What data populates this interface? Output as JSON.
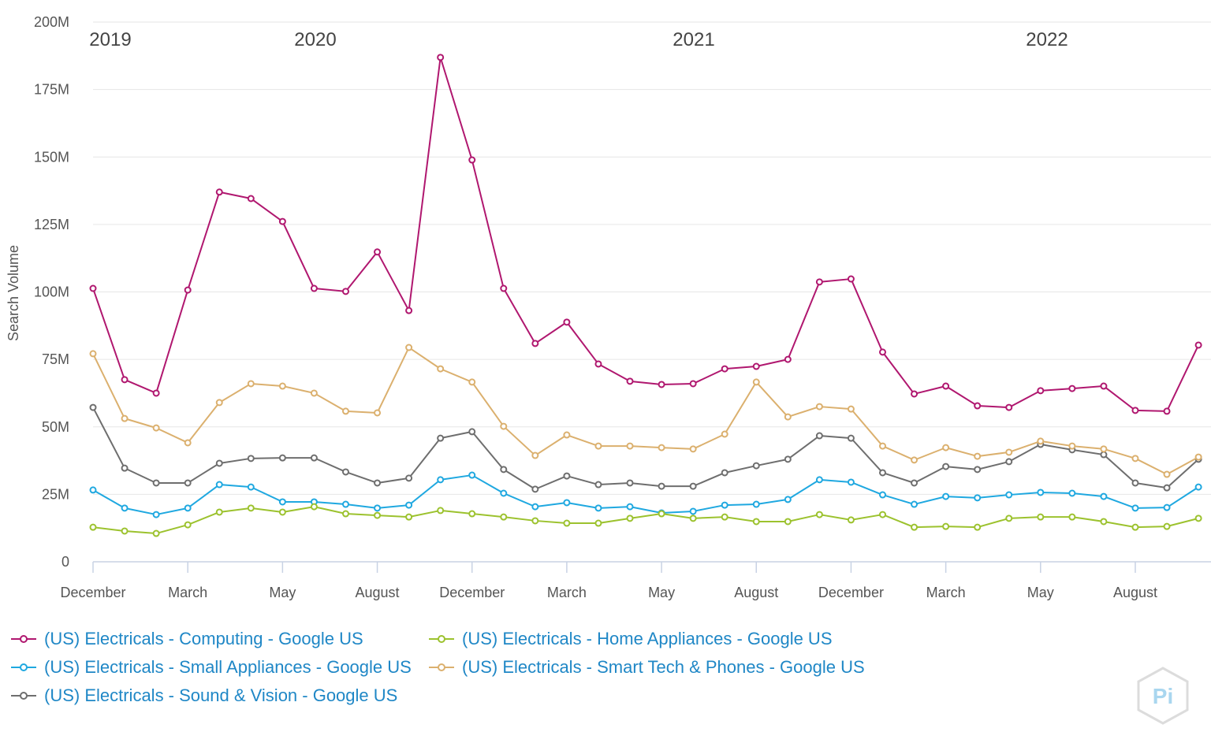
{
  "chart_data": {
    "type": "line",
    "title": "",
    "xlabel": "",
    "ylabel": "Search Volume",
    "ylim": [
      0,
      200000000
    ],
    "y_ticks": [
      "0",
      "25M",
      "50M",
      "75M",
      "100M",
      "125M",
      "150M",
      "175M",
      "200M"
    ],
    "x_tick_labels": [
      "December",
      "March",
      "May",
      "August",
      "December",
      "March",
      "May",
      "August",
      "December",
      "March",
      "May",
      "August"
    ],
    "year_labels": [
      "2019",
      "2020",
      "2021",
      "2022"
    ],
    "grid": true,
    "legend_position": "bottom",
    "unit": "M",
    "series": [
      {
        "name": "(US) Electricals - Computing - Google US",
        "color": "#b0176f",
        "values": [
          101.3,
          67.5,
          62.5,
          100.7,
          137,
          134.6,
          126.1,
          101.3,
          100.2,
          114.8,
          93.1,
          186.9,
          148.9,
          101.3,
          80.9,
          88.8,
          73.3,
          66.9,
          65.7,
          66,
          71.5,
          72.4,
          75,
          103.7,
          104.8,
          77.7,
          62.2,
          65.1,
          57.8,
          57.2,
          63.4,
          64.2,
          65.1,
          56.1,
          55.8,
          80.3
        ]
      },
      {
        "name": "(US) Electricals - Small Appliances - Google US",
        "color": "#1fa8e0",
        "values": [
          26.6,
          19.9,
          17.5,
          19.9,
          28.6,
          27.7,
          22.2,
          22.2,
          21.3,
          19.9,
          21,
          30.4,
          32.1,
          25.4,
          20.4,
          21.9,
          19.9,
          20.4,
          18.1,
          18.7,
          21,
          21.3,
          23.1,
          30.4,
          29.5,
          24.8,
          21.3,
          24.2,
          23.7,
          24.8,
          25.7,
          25.4,
          24.2,
          19.9,
          20.1,
          27.7
        ]
      },
      {
        "name": "(US) Electricals - Sound & Vision - Google US",
        "color": "#6e6e6e",
        "values": [
          57.2,
          34.7,
          29.2,
          29.2,
          36.5,
          38.3,
          38.5,
          38.5,
          33.3,
          29.2,
          31,
          45.8,
          48.2,
          34.2,
          26.9,
          31.8,
          28.6,
          29.2,
          28,
          28,
          33,
          35.6,
          38,
          46.7,
          45.8,
          33,
          29.2,
          35.3,
          34.2,
          37.1,
          43.5,
          41.5,
          39.7,
          29.2,
          27.4,
          38
        ]
      },
      {
        "name": "(US) Electricals - Home Appliances - Google US",
        "color": "#9cc22e",
        "values": [
          12.8,
          11.4,
          10.5,
          13.7,
          18.4,
          19.9,
          18.4,
          20.4,
          17.8,
          17.2,
          16.6,
          19,
          17.8,
          16.6,
          15.2,
          14.3,
          14.3,
          16.1,
          17.8,
          16.1,
          16.6,
          14.9,
          14.9,
          17.5,
          15.5,
          17.5,
          12.8,
          13.1,
          12.8,
          16.1,
          16.6,
          16.6,
          14.9,
          12.8,
          13.1,
          16.1
        ]
      },
      {
        "name": "(US) Electricals - Smart Tech & Phones - Google US",
        "color": "#dbb06e",
        "values": [
          77.1,
          53.1,
          49.6,
          44.1,
          59,
          66,
          65.1,
          62.5,
          55.8,
          55.2,
          79.4,
          71.5,
          66.6,
          50.2,
          39.4,
          47,
          42.9,
          42.9,
          42.3,
          41.8,
          47.3,
          66.6,
          53.7,
          57.5,
          56.6,
          42.9,
          37.7,
          42.3,
          39.1,
          40.6,
          44.7,
          42.9,
          41.8,
          38.3,
          32.4,
          38.8
        ]
      }
    ]
  },
  "logo_text": "Pi"
}
